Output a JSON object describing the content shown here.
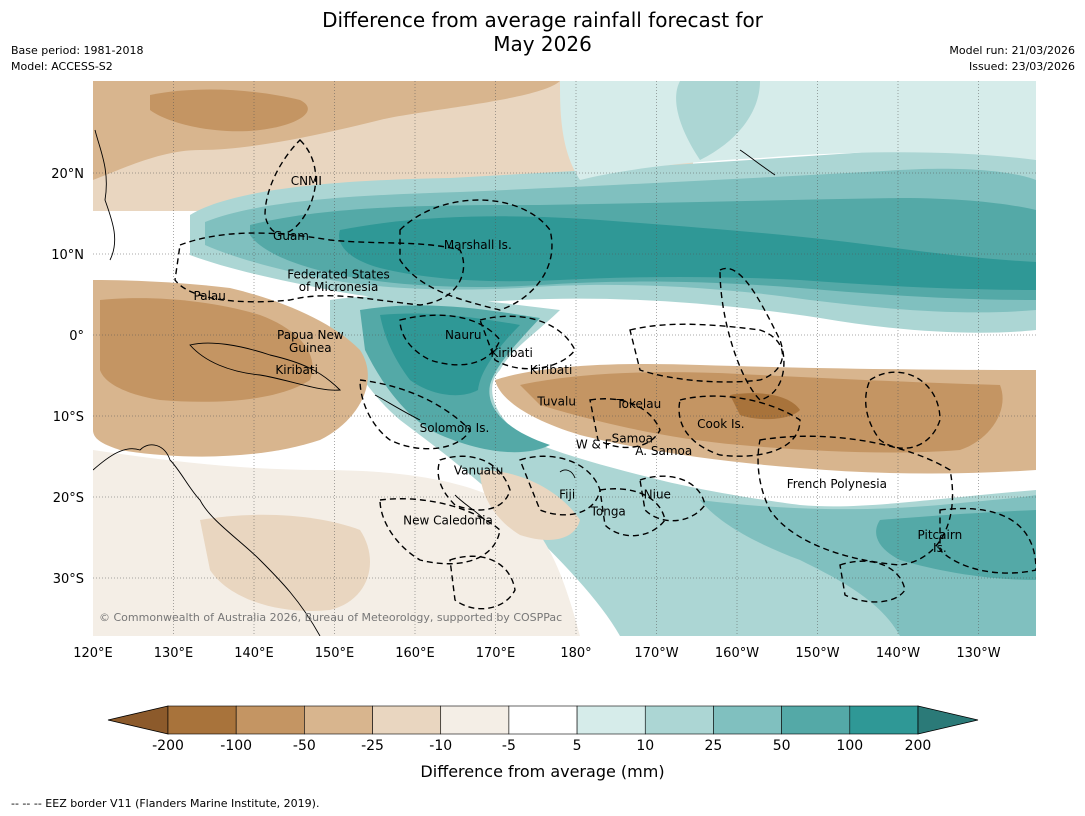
{
  "title_line1": "Difference from average rainfall forecast for",
  "title_line2": "May 2026",
  "base_period": "Base period: 1981-2018",
  "model": "Model: ACCESS-S2",
  "model_run": "Model run: 21/03/2026",
  "issued": "Issued: 23/03/2026",
  "copyright": "© Commonwealth of Australia 2026, Bureau of Meteorology, supported by COSPPac",
  "lat_labels": [
    "20°N",
    "10°N",
    "0°",
    "10°S",
    "20°S",
    "30°S"
  ],
  "lon_labels": [
    "120°E",
    "130°E",
    "140°E",
    "150°E",
    "160°E",
    "170°E",
    "180°",
    "170°W",
    "160°W",
    "150°W",
    "140°W",
    "130°W"
  ],
  "places": [
    {
      "name": "CNMI",
      "lon": 146.5,
      "lat": 19.0
    },
    {
      "name": "Guam",
      "lon": 144.6,
      "lat": 12.2
    },
    {
      "name": "Marshall Is.",
      "lon": 167.8,
      "lat": 11.1
    },
    {
      "name": "Federated States",
      "lon": 150.5,
      "lat": 7.5
    },
    {
      "name": "of Micronesia",
      "lon": 150.5,
      "lat": 5.9
    },
    {
      "name": "Palau",
      "lon": 134.5,
      "lat": 4.8
    },
    {
      "name": "Papua New",
      "lon": 147.0,
      "lat": 0.0
    },
    {
      "name": "Guinea",
      "lon": 147.0,
      "lat": -1.6
    },
    {
      "name": "Nauru",
      "lon": 166.0,
      "lat": 0.0
    },
    {
      "name": "Kiribati",
      "lon": 172.0,
      "lat": -2.2
    },
    {
      "name": "Kiribati",
      "lon": 176.9,
      "lat": -4.3
    },
    {
      "name": "Kiribati",
      "lon": 145.3,
      "lat": -4.3
    },
    {
      "name": "Tuvalu",
      "lon": 177.6,
      "lat": -8.2
    },
    {
      "name": "Tokelau",
      "lon": 187.8,
      "lat": -8.5
    },
    {
      "name": "Cook Is.",
      "lon": 198.0,
      "lat": -11.0
    },
    {
      "name": "Solomon Is.",
      "lon": 164.9,
      "lat": -11.5
    },
    {
      "name": "Samoa",
      "lon": 187.0,
      "lat": -12.8
    },
    {
      "name": "W & F",
      "lon": 182.2,
      "lat": -13.5
    },
    {
      "name": "A. Samoa",
      "lon": 190.9,
      "lat": -14.3
    },
    {
      "name": "Vanuatu",
      "lon": 167.9,
      "lat": -16.7
    },
    {
      "name": "French Polynesia",
      "lon": 212.4,
      "lat": -18.4
    },
    {
      "name": "Fiji",
      "lon": 178.9,
      "lat": -19.7
    },
    {
      "name": "Niue",
      "lon": 190.1,
      "lat": -19.7
    },
    {
      "name": "Tonga",
      "lon": 184.0,
      "lat": -21.8
    },
    {
      "name": "New Caledonia",
      "lon": 164.1,
      "lat": -22.9
    },
    {
      "name": "Pitcairn",
      "lon": 225.2,
      "lat": -24.7
    },
    {
      "name": "Is.",
      "lon": 225.2,
      "lat": -26.3
    }
  ],
  "colorbar": {
    "ticks": [
      "-200",
      "-100",
      "-50",
      "-25",
      "-10",
      "-5",
      "5",
      "10",
      "25",
      "50",
      "100",
      "200"
    ],
    "colors": [
      "#8c5a2b",
      "#a8733b",
      "#c49563",
      "#d8b58e",
      "#e9d6c0",
      "#f4eee6",
      "#ffffff",
      "#d6ecea",
      "#acd6d4",
      "#80c0bf",
      "#54a9a7",
      "#2f9896",
      "#2b7a78"
    ],
    "label": "Difference from average (mm)"
  },
  "footnote": "--  --  -- EEZ border V11 (Flanders Marine Institute, 2019)."
}
